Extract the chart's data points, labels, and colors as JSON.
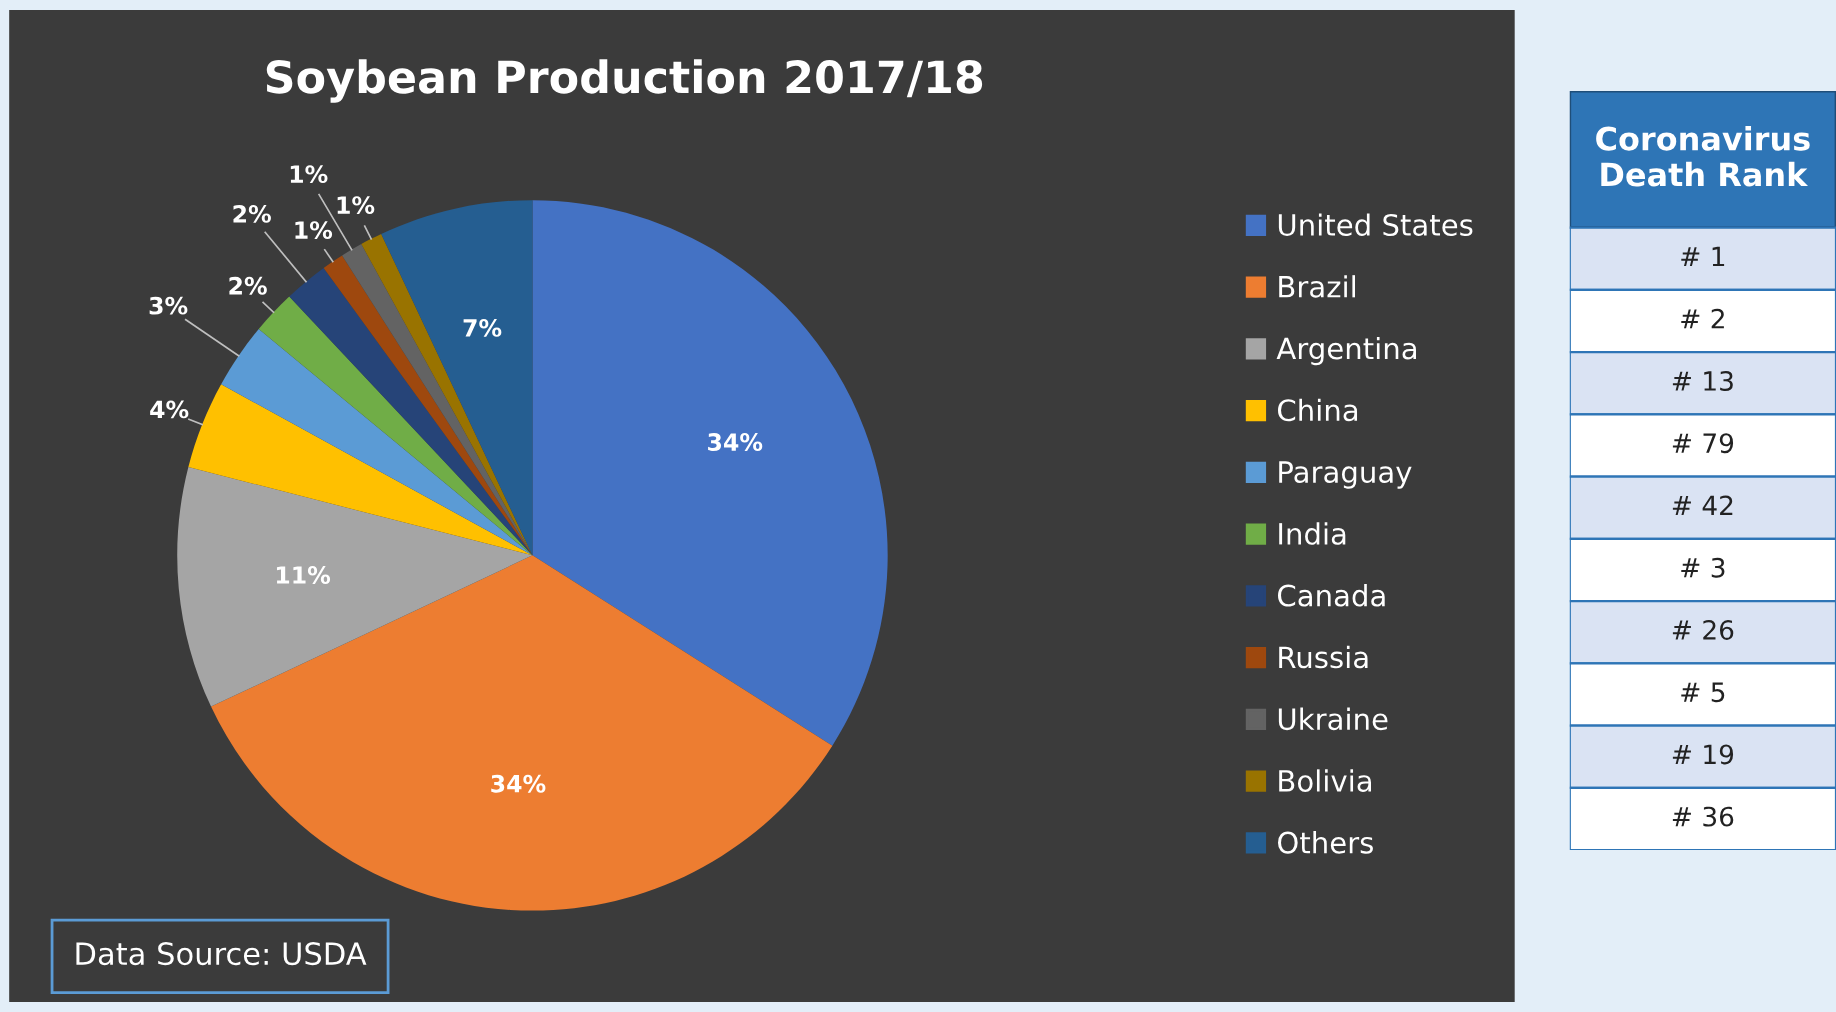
{
  "chart_data": [
    {
      "type": "pie",
      "title": "Soybean Production 2017/18",
      "categories": [
        "United States",
        "Brazil",
        "Argentina",
        "China",
        "Paraguay",
        "India",
        "Canada",
        "Russia",
        "Ukraine",
        "Bolivia",
        "Others"
      ],
      "values": [
        34,
        34,
        11,
        4,
        3,
        2,
        2,
        1,
        1,
        1,
        7
      ],
      "colors": [
        "#4472c4",
        "#ed7d31",
        "#a5a5a5",
        "#ffc000",
        "#5b9bd5",
        "#70ad47",
        "#264478",
        "#9e480e",
        "#636363",
        "#997300",
        "#255e91"
      ],
      "value_labels": [
        "34%",
        "34%",
        "11%",
        "4%",
        "3%",
        "2%",
        "2%",
        "1%",
        "1%",
        "1%",
        "7%"
      ],
      "legend": "right",
      "annotations": [
        "Data Source: USDA"
      ]
    },
    {
      "type": "other",
      "title": "Coronavirus Death Rank",
      "categories": [
        "# 1",
        "# 2",
        "# 13",
        "# 79",
        "# 42",
        "# 3",
        "# 26",
        "# 5",
        "# 19",
        "# 36"
      ]
    }
  ]
}
